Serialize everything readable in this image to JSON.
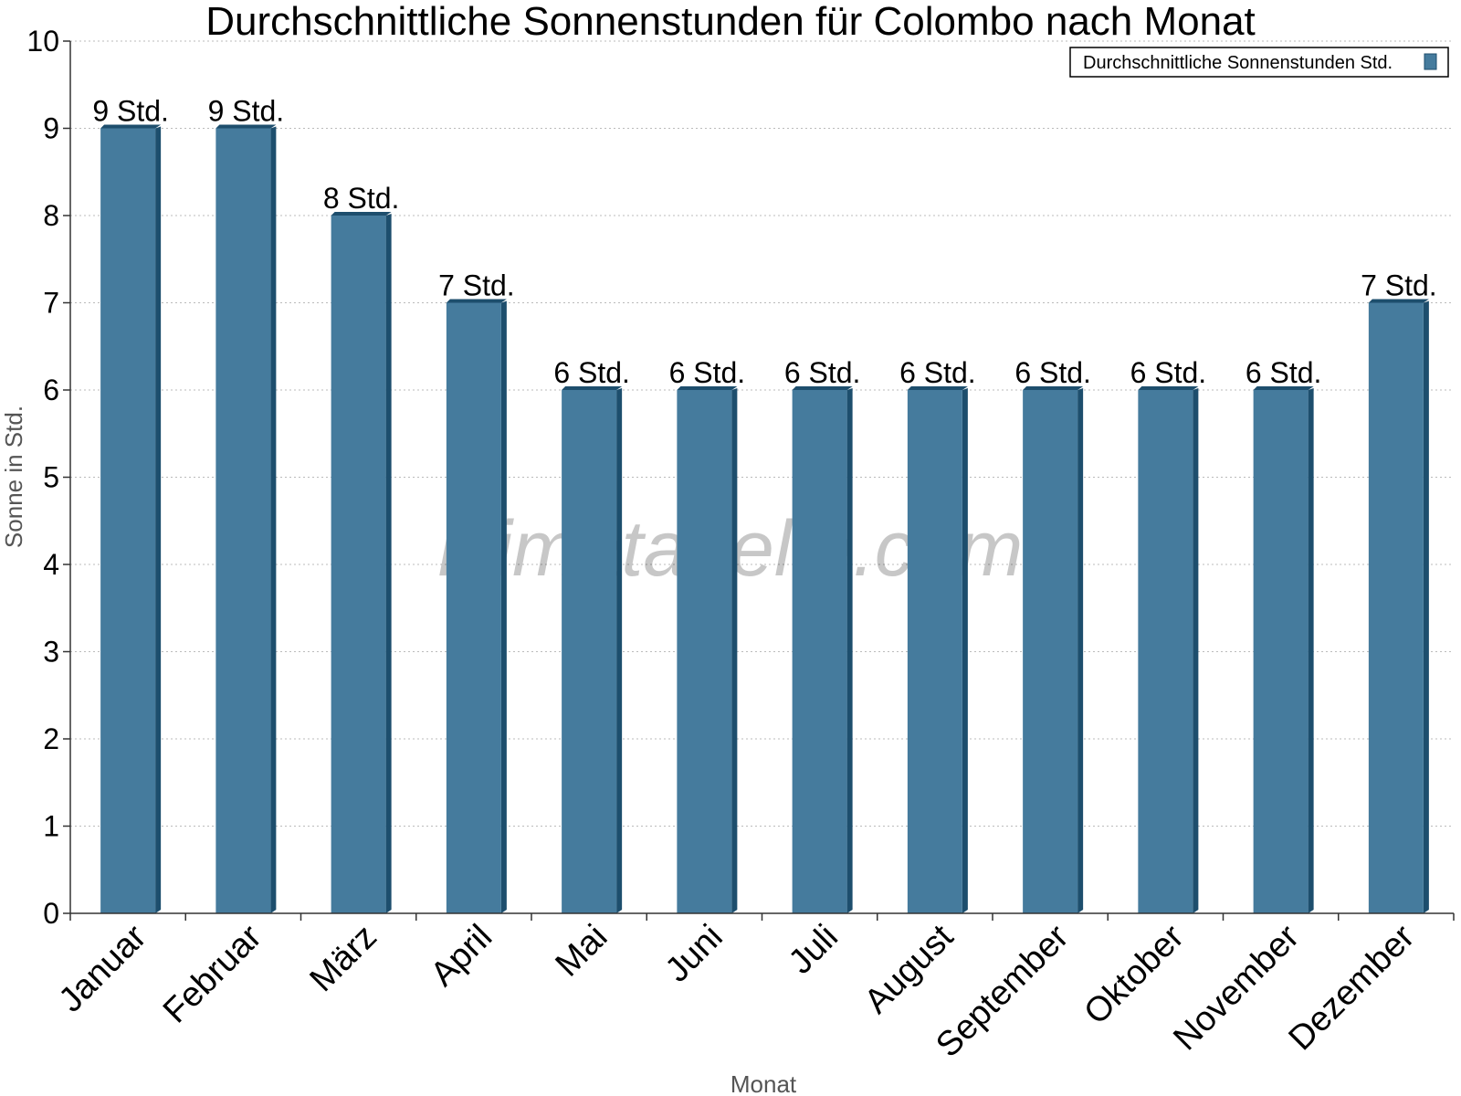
{
  "chart_data": {
    "type": "bar",
    "title": "Durchschnittliche Sonnenstunden für Colombo nach Monat",
    "xlabel": "Monat",
    "ylabel": "Sonne in Std.",
    "ylim": [
      0,
      10
    ],
    "yticks": [
      0,
      1,
      2,
      3,
      4,
      5,
      6,
      7,
      8,
      9,
      10
    ],
    "grid": true,
    "legend_position": "top-right",
    "categories": [
      "Januar",
      "Februar",
      "März",
      "April",
      "Mai",
      "Juni",
      "Juli",
      "August",
      "September",
      "Oktober",
      "November",
      "Dezember"
    ],
    "series": [
      {
        "name": "Durchschnittliche Sonnenstunden Std.",
        "values": [
          9,
          9,
          8,
          7,
          6,
          6,
          6,
          6,
          6,
          6,
          6,
          7
        ],
        "labels": [
          "9 Std.",
          "9 Std.",
          "8 Std.",
          "7 Std.",
          "6 Std.",
          "6 Std.",
          "6 Std.",
          "6 Std.",
          "6 Std.",
          "6 Std.",
          "6 Std.",
          "7 Std."
        ]
      }
    ],
    "colors": {
      "bar": "#457b9d",
      "bar_dark": "#1d4e6d",
      "grid": "#bbbbbb",
      "axis": "#333333"
    },
    "watermark": "klimatabelle.com"
  }
}
